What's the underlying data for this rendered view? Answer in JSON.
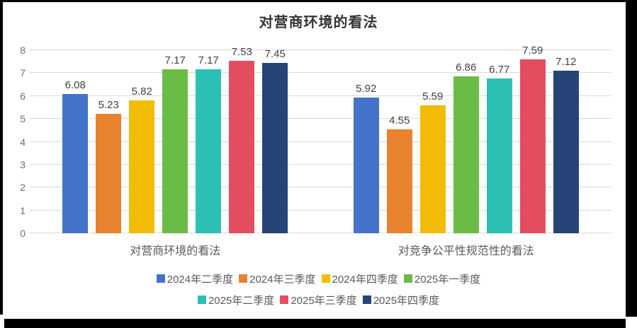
{
  "frame": {
    "border_color": "#000000"
  },
  "chart_data": {
    "type": "bar",
    "title": "对营商环境的看法",
    "categories": [
      "对营商环境的看法",
      "对竞争公平性规范性的看法"
    ],
    "series": [
      {
        "name": "2024年二季度",
        "color": "#4573CB",
        "values": [
          6.08,
          5.92
        ]
      },
      {
        "name": "2024年三季度",
        "color": "#E8822E",
        "values": [
          5.23,
          4.55
        ]
      },
      {
        "name": "2024年四季度",
        "color": "#F2BC06",
        "values": [
          5.82,
          5.59
        ]
      },
      {
        "name": "2025年一季度",
        "color": "#6BBC47",
        "values": [
          7.17,
          6.86
        ]
      },
      {
        "name": "2025年二季度",
        "color": "#2CC0B4",
        "values": [
          7.17,
          6.77
        ]
      },
      {
        "name": "2025年三季度",
        "color": "#E44D5F",
        "values": [
          7.53,
          7.59
        ]
      },
      {
        "name": "2025年四季度",
        "color": "#264478",
        "values": [
          7.45,
          7.12
        ]
      }
    ],
    "ylim": [
      0,
      8
    ],
    "ytick_step": 1,
    "grid": true,
    "gridline_color": "#D9D9D9",
    "value_labels": true,
    "legend_position": "bottom",
    "legend_rows": [
      4,
      3
    ]
  }
}
